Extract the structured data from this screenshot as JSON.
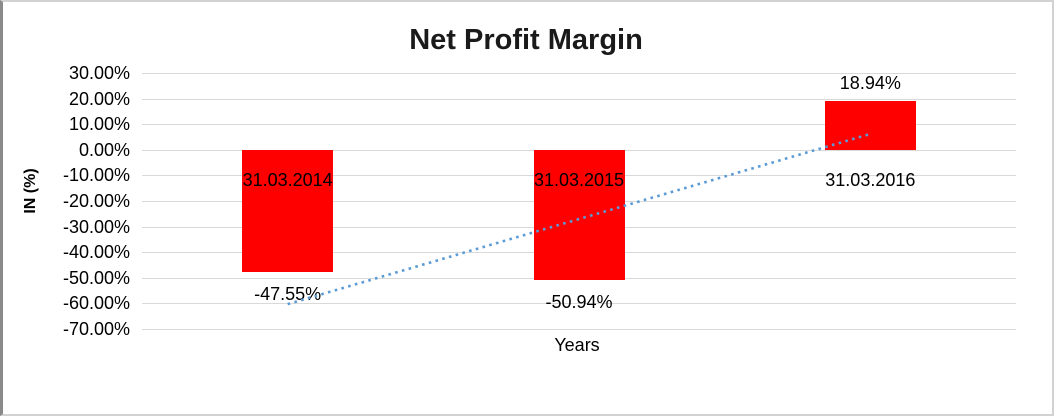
{
  "chart": {
    "title": "Net Profit Margin",
    "y_axis_title": "IN (%)",
    "x_axis_title": "Years"
  },
  "chart_data": {
    "type": "bar",
    "title": "Net Profit Margin",
    "categories": [
      "31.03.2014",
      "31.03.2015",
      "31.03.2016"
    ],
    "values": [
      -47.55,
      -50.94,
      18.94
    ],
    "value_labels": [
      "-47.55%",
      "-50.94%",
      "18.94%"
    ],
    "xlabel": "Years",
    "ylabel": "IN (%)",
    "ylim": [
      -70,
      30
    ],
    "ytick_step": 10,
    "ytick_labels": [
      "30.00%",
      "20.00%",
      "10.00%",
      "0.00%",
      "-10.00%",
      "-20.00%",
      "-30.00%",
      "-40.00%",
      "-50.00%",
      "-60.00%",
      "-70.00%"
    ],
    "grid": true,
    "legend": false,
    "bar_color": "#ff0000",
    "gridline_color": "#d9d9d9",
    "trendline": {
      "style": "dotted",
      "color": "#5b9bd5",
      "start_value": -60.3,
      "end_value": 6.2
    }
  }
}
